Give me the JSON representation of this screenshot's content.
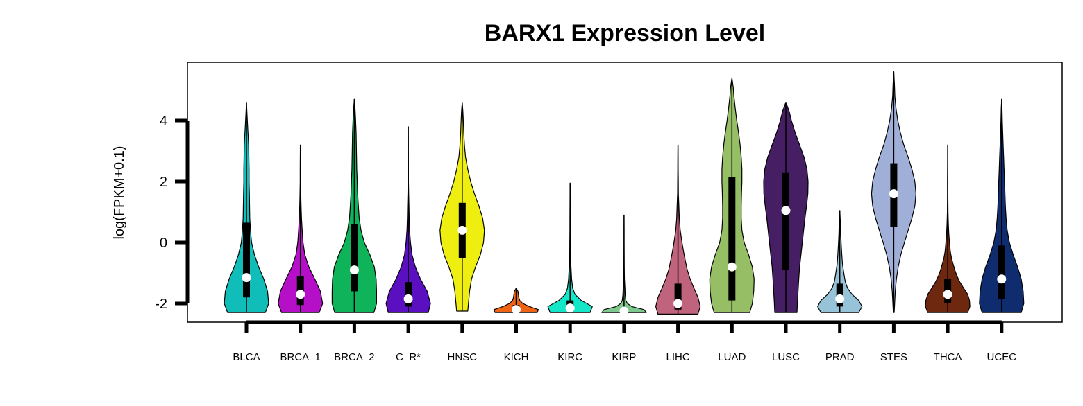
{
  "chart_data": {
    "type": "violin",
    "title": "BARX1 Expression Level",
    "xlabel": "",
    "ylabel": "log(FPKM+0.1)",
    "ylim": [
      -2.6,
      5.9
    ],
    "yticks": [
      -2,
      0,
      2,
      4
    ],
    "ytick_labels": [
      "-2",
      "0",
      "2",
      "4"
    ],
    "grid": false,
    "legend": "none",
    "categories": [
      "BLCA",
      "BRCA_1",
      "BRCA_2",
      "C_R*",
      "HNSC",
      "KICH",
      "KIRC",
      "KIRP",
      "LIHC",
      "LUAD",
      "LUSC",
      "PRAD",
      "STES",
      "THCA",
      "UCEC"
    ],
    "series": [
      {
        "category": "BLCA",
        "color": "#10BDB8",
        "min": -2.3,
        "max": 4.6,
        "q1": -1.8,
        "median": -1.15,
        "q3": 0.65,
        "density_y": [
          -2.3,
          -2.0,
          -1.6,
          -1.2,
          -0.8,
          -0.4,
          0.0,
          0.4,
          0.8,
          1.2,
          1.6,
          2.0,
          2.4,
          2.8,
          3.2,
          3.6,
          4.0,
          4.6
        ],
        "density_w": [
          0.85,
          1.0,
          0.95,
          0.78,
          0.55,
          0.36,
          0.23,
          0.18,
          0.15,
          0.14,
          0.13,
          0.12,
          0.12,
          0.11,
          0.1,
          0.07,
          0.04,
          0.0
        ]
      },
      {
        "category": "BRCA_1",
        "color": "#B510C8",
        "min": -2.3,
        "max": 3.2,
        "q1": -2.05,
        "median": -1.7,
        "q3": -1.1,
        "density_y": [
          -2.3,
          -2.0,
          -1.6,
          -1.2,
          -0.8,
          -0.4,
          0.0,
          0.4,
          0.8,
          1.2,
          1.6,
          2.0,
          2.4,
          2.8,
          3.2
        ],
        "density_w": [
          0.85,
          1.0,
          0.9,
          0.65,
          0.38,
          0.2,
          0.12,
          0.08,
          0.05,
          0.03,
          0.02,
          0.01,
          0.01,
          0.005,
          0.0
        ]
      },
      {
        "category": "BRCA_2",
        "color": "#0EB35A",
        "min": -2.3,
        "max": 4.7,
        "q1": -1.6,
        "median": -0.9,
        "q3": 0.6,
        "density_y": [
          -2.3,
          -2.0,
          -1.6,
          -1.2,
          -0.8,
          -0.4,
          0.0,
          0.4,
          0.8,
          1.2,
          1.6,
          2.0,
          2.4,
          2.8,
          3.2,
          3.6,
          4.0,
          4.3,
          4.7
        ],
        "density_w": [
          0.88,
          1.0,
          1.0,
          0.98,
          0.9,
          0.7,
          0.45,
          0.3,
          0.22,
          0.18,
          0.15,
          0.13,
          0.11,
          0.1,
          0.09,
          0.08,
          0.06,
          0.04,
          0.0
        ]
      },
      {
        "category": "C_R*",
        "color": "#5A0FC0",
        "min": -2.3,
        "max": 3.8,
        "q1": -2.1,
        "median": -1.85,
        "q3": -1.3,
        "density_y": [
          -2.3,
          -2.0,
          -1.6,
          -1.2,
          -0.8,
          -0.4,
          0.0,
          0.4,
          0.8,
          1.2,
          1.6,
          2.0,
          2.4,
          2.8,
          3.2,
          3.8
        ],
        "density_w": [
          0.9,
          1.0,
          0.85,
          0.55,
          0.32,
          0.17,
          0.1,
          0.06,
          0.04,
          0.03,
          0.02,
          0.01,
          0.01,
          0.005,
          0.003,
          0.0
        ]
      },
      {
        "category": "HNSC",
        "color": "#EEEE10",
        "min": -2.25,
        "max": 4.6,
        "q1": -0.5,
        "median": 0.4,
        "q3": 1.3,
        "density_y": [
          -2.25,
          -2.0,
          -1.6,
          -1.2,
          -0.8,
          -0.4,
          0.0,
          0.4,
          0.8,
          1.2,
          1.6,
          2.0,
          2.4,
          2.8,
          3.2,
          3.6,
          4.0,
          4.3,
          4.6
        ],
        "density_w": [
          0.25,
          0.28,
          0.33,
          0.42,
          0.6,
          0.82,
          0.96,
          1.0,
          0.92,
          0.75,
          0.55,
          0.38,
          0.25,
          0.15,
          0.1,
          0.07,
          0.05,
          0.03,
          0.0
        ]
      },
      {
        "category": "KICH",
        "color": "#EE6414",
        "min": -2.3,
        "max": -1.5,
        "q1": -2.25,
        "median": -2.2,
        "q3": -2.05,
        "density_y": [
          -2.3,
          -2.2,
          -2.1,
          -2.0,
          -1.9,
          -1.8,
          -1.7,
          -1.6,
          -1.5
        ],
        "density_w": [
          0.95,
          1.0,
          0.6,
          0.3,
          0.16,
          0.12,
          0.1,
          0.08,
          0.0
        ]
      },
      {
        "category": "KIRC",
        "color": "#14E6C8",
        "min": -2.3,
        "max": 1.95,
        "q1": -2.25,
        "median": -2.15,
        "q3": -1.9,
        "density_y": [
          -2.3,
          -2.1,
          -1.9,
          -1.7,
          -1.5,
          -1.2,
          -0.8,
          -0.4,
          0.0,
          0.4,
          0.8,
          1.2,
          1.6,
          1.95
        ],
        "density_w": [
          0.9,
          1.0,
          0.5,
          0.22,
          0.12,
          0.07,
          0.04,
          0.02,
          0.015,
          0.01,
          0.008,
          0.005,
          0.003,
          0.0
        ]
      },
      {
        "category": "KIRP",
        "color": "#7DC88C",
        "min": -2.3,
        "max": 0.9,
        "q1": -2.28,
        "median": -2.25,
        "q3": -2.15,
        "density_y": [
          -2.3,
          -2.2,
          -2.1,
          -2.0,
          -1.9,
          -1.7,
          -1.5,
          -1.2,
          -0.8,
          -0.4,
          0.0,
          0.4,
          0.9
        ],
        "density_w": [
          1.0,
          0.9,
          0.35,
          0.15,
          0.08,
          0.05,
          0.04,
          0.02,
          0.01,
          0.005,
          0.003,
          0.002,
          0.0
        ]
      },
      {
        "category": "LIHC",
        "color": "#C0647D",
        "min": -2.35,
        "max": 3.2,
        "q1": -2.2,
        "median": -2.0,
        "q3": -1.35,
        "density_y": [
          -2.35,
          -2.1,
          -1.8,
          -1.5,
          -1.2,
          -0.9,
          -0.6,
          -0.3,
          0.0,
          0.4,
          0.8,
          1.2,
          1.6,
          2.0,
          2.4,
          2.8,
          3.2
        ],
        "density_w": [
          0.9,
          1.0,
          0.9,
          0.72,
          0.55,
          0.42,
          0.33,
          0.25,
          0.18,
          0.1,
          0.06,
          0.04,
          0.02,
          0.015,
          0.01,
          0.005,
          0.0
        ]
      },
      {
        "category": "LUAD",
        "color": "#96BE64",
        "min": -2.3,
        "max": 5.4,
        "q1": -1.9,
        "median": -0.8,
        "q3": 2.15,
        "density_y": [
          -2.3,
          -2.0,
          -1.6,
          -1.2,
          -0.8,
          -0.4,
          0.0,
          0.4,
          0.8,
          1.2,
          1.6,
          2.0,
          2.4,
          2.8,
          3.2,
          3.6,
          4.0,
          4.4,
          4.8,
          5.1,
          5.4
        ],
        "density_w": [
          0.8,
          0.92,
          0.98,
          1.0,
          0.92,
          0.75,
          0.55,
          0.45,
          0.42,
          0.42,
          0.43,
          0.45,
          0.45,
          0.42,
          0.37,
          0.3,
          0.22,
          0.15,
          0.09,
          0.06,
          0.0
        ]
      },
      {
        "category": "LUSC",
        "color": "#461E64",
        "min": -2.3,
        "max": 4.6,
        "q1": -0.9,
        "median": 1.05,
        "q3": 2.3,
        "density_y": [
          -2.3,
          -2.0,
          -1.6,
          -1.2,
          -0.8,
          -0.4,
          0.0,
          0.4,
          0.8,
          1.2,
          1.6,
          2.0,
          2.4,
          2.8,
          3.2,
          3.6,
          4.0,
          4.3,
          4.6
        ],
        "density_w": [
          0.5,
          0.52,
          0.55,
          0.58,
          0.62,
          0.68,
          0.74,
          0.8,
          0.86,
          0.93,
          0.99,
          1.0,
          0.95,
          0.82,
          0.62,
          0.42,
          0.25,
          0.15,
          0.0
        ]
      },
      {
        "category": "PRAD",
        "color": "#96C3D7",
        "min": -2.3,
        "max": 1.05,
        "q1": -2.1,
        "median": -1.85,
        "q3": -1.35,
        "density_y": [
          -2.3,
          -2.1,
          -1.9,
          -1.7,
          -1.5,
          -1.3,
          -1.1,
          -0.9,
          -0.7,
          -0.5,
          -0.3,
          0.0,
          0.3,
          0.6,
          1.05
        ],
        "density_w": [
          0.85,
          1.0,
          0.85,
          0.55,
          0.35,
          0.25,
          0.2,
          0.16,
          0.12,
          0.1,
          0.08,
          0.06,
          0.04,
          0.03,
          0.0
        ]
      },
      {
        "category": "STES",
        "color": "#A0AFD7",
        "min": -2.3,
        "max": 5.6,
        "q1": 0.5,
        "median": 1.6,
        "q3": 2.6,
        "density_y": [
          -2.3,
          -2.0,
          -1.6,
          -1.2,
          -0.8,
          -0.4,
          0.0,
          0.4,
          0.8,
          1.2,
          1.6,
          2.0,
          2.4,
          2.8,
          3.2,
          3.6,
          4.0,
          4.4,
          4.8,
          5.2,
          5.6
        ],
        "density_w": [
          0.02,
          0.04,
          0.07,
          0.12,
          0.2,
          0.32,
          0.48,
          0.65,
          0.82,
          0.95,
          1.0,
          0.95,
          0.82,
          0.65,
          0.45,
          0.3,
          0.18,
          0.1,
          0.05,
          0.03,
          0.0
        ]
      },
      {
        "category": "THCA",
        "color": "#6E2810",
        "min": -2.3,
        "max": 3.2,
        "q1": -2.0,
        "median": -1.7,
        "q3": -1.2,
        "density_y": [
          -2.3,
          -2.1,
          -1.9,
          -1.7,
          -1.5,
          -1.3,
          -1.1,
          -0.9,
          -0.7,
          -0.5,
          -0.3,
          0.0,
          0.3,
          0.6,
          1.0,
          1.5,
          2.0,
          2.5,
          3.2
        ],
        "density_w": [
          0.9,
          1.0,
          0.98,
          0.9,
          0.72,
          0.55,
          0.42,
          0.32,
          0.24,
          0.17,
          0.12,
          0.08,
          0.05,
          0.03,
          0.015,
          0.01,
          0.008,
          0.004,
          0.0
        ]
      },
      {
        "category": "UCEC",
        "color": "#0F2D6E",
        "min": -2.3,
        "max": 4.7,
        "q1": -1.85,
        "median": -1.2,
        "q3": -0.1,
        "density_y": [
          -2.3,
          -2.0,
          -1.6,
          -1.2,
          -0.8,
          -0.4,
          0.0,
          0.4,
          0.8,
          1.2,
          1.6,
          2.0,
          2.4,
          2.8,
          3.2,
          3.6,
          4.0,
          4.4,
          4.7
        ],
        "density_w": [
          0.88,
          1.0,
          0.97,
          0.88,
          0.72,
          0.52,
          0.35,
          0.25,
          0.2,
          0.17,
          0.15,
          0.13,
          0.11,
          0.09,
          0.07,
          0.05,
          0.03,
          0.02,
          0.0
        ]
      }
    ]
  }
}
